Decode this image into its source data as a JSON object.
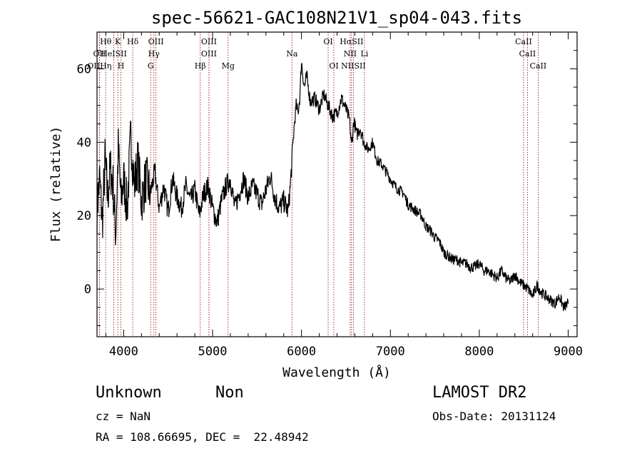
{
  "chart_data": {
    "type": "line",
    "title": "spec-56621-GAC108N21V1_sp04-043.fits",
    "xlabel": "Wavelength (Å)",
    "ylabel": "Flux (relative)",
    "xlim": [
      3700,
      9100
    ],
    "ylim": [
      -13,
      70
    ],
    "xticks": [
      4000,
      5000,
      6000,
      7000,
      8000,
      9000
    ],
    "yticks": [
      0,
      20,
      40,
      60
    ],
    "series": [
      {
        "x": [
          3700,
          3730,
          3760,
          3790,
          3820,
          3850,
          3880,
          3910,
          3940,
          3970,
          4000,
          4040,
          4080,
          4120,
          4160,
          4200,
          4250,
          4300,
          4350,
          4400,
          4450,
          4500,
          4550,
          4600,
          4650,
          4700,
          4750,
          4800,
          4850,
          4900,
          4950,
          5000,
          5050,
          5100,
          5150,
          5200,
          5250,
          5300,
          5350,
          5400,
          5450,
          5500,
          5550,
          5600,
          5650,
          5700,
          5750,
          5800,
          5850,
          5880,
          5900,
          5920,
          5940,
          5960,
          5980,
          6000,
          6030,
          6060,
          6100,
          6150,
          6200,
          6250,
          6300,
          6350,
          6400,
          6450,
          6500,
          6540,
          6563,
          6590,
          6620,
          6660,
          6700,
          6750,
          6800,
          6850,
          6900,
          6950,
          7000,
          7050,
          7100,
          7150,
          7200,
          7250,
          7300,
          7350,
          7400,
          7450,
          7500,
          7550,
          7600,
          7650,
          7700,
          7750,
          7800,
          7850,
          7900,
          7950,
          8000,
          8050,
          8100,
          8150,
          8200,
          8250,
          8300,
          8350,
          8400,
          8450,
          8500,
          8550,
          8600,
          8650,
          8700,
          8750,
          8800,
          8850,
          8900,
          8950,
          9000
        ],
        "y": [
          22,
          30,
          18,
          35,
          25,
          33,
          28,
          15,
          38,
          24,
          30,
          22,
          42,
          28,
          35,
          24,
          30,
          26,
          32,
          22,
          28,
          21,
          30,
          25,
          22,
          28,
          24,
          27,
          20,
          26,
          28,
          22,
          18,
          24,
          28,
          30,
          22,
          26,
          30,
          25,
          28,
          26,
          23,
          27,
          31,
          25,
          22,
          24,
          21,
          30,
          38,
          45,
          50,
          48,
          52,
          62,
          55,
          58,
          51,
          52,
          49,
          53,
          50,
          47,
          48,
          52,
          49,
          46,
          39,
          46,
          42,
          44,
          40,
          38,
          40,
          35,
          34,
          32,
          30,
          28,
          27,
          26,
          23,
          22,
          21,
          20,
          17,
          16,
          14,
          13,
          10,
          9,
          8,
          8,
          7,
          7,
          6,
          6,
          7,
          5,
          5,
          4,
          3,
          5,
          3,
          2,
          4,
          2,
          1,
          0,
          -2,
          1,
          -1,
          -2,
          -3,
          -4,
          -2,
          -5,
          -4
        ]
      }
    ],
    "lines": [
      {
        "label": "Hθ",
        "x": 3798,
        "row": 0
      },
      {
        "label": "K",
        "x": 3934,
        "row": 0
      },
      {
        "label": "Hδ",
        "x": 4102,
        "row": 0
      },
      {
        "label": "OIII",
        "x": 4363,
        "row": 0
      },
      {
        "label": "OIII",
        "x": 4959,
        "row": 0
      },
      {
        "label": "OI",
        "x": 6300,
        "row": 0
      },
      {
        "label": "HαSII",
        "x": 6563,
        "row": 0
      },
      {
        "label": "CaII",
        "x": 8498,
        "row": 0
      },
      {
        "label": "OII",
        "x": 3727,
        "row": 1
      },
      {
        "label": "HeISII",
        "x": 3889,
        "row": 1
      },
      {
        "label": "Hγ",
        "x": 4340,
        "row": 1
      },
      {
        "label": "OIII",
        "x": 4959,
        "row": 1
      },
      {
        "label": "Na",
        "x": 5893,
        "row": 1
      },
      {
        "label": "NII",
        "x": 6548,
        "row": 1
      },
      {
        "label": "Li",
        "x": 6708,
        "row": 1
      },
      {
        "label": "CaII",
        "x": 8542,
        "row": 1
      },
      {
        "label": "OIIHη",
        "x": 3727,
        "row": 2
      },
      {
        "label": "H",
        "x": 3969,
        "row": 2
      },
      {
        "label": "G",
        "x": 4304,
        "row": 2
      },
      {
        "label": "Hβ",
        "x": 4861,
        "row": 2
      },
      {
        "label": "Mg",
        "x": 5175,
        "row": 2
      },
      {
        "label": "OI",
        "x": 6364,
        "row": 2
      },
      {
        "label": "NIISII",
        "x": 6584,
        "row": 2
      },
      {
        "label": "CaII",
        "x": 8662,
        "row": 2
      }
    ]
  },
  "info": {
    "class_label": "Unknown",
    "subclass_label": "Non",
    "survey": "LAMOST DR2",
    "cz": "cz = NaN",
    "obs_date": "Obs-Date: 20131124",
    "coords": "RA = 108.66695, DEC =  22.48942"
  }
}
